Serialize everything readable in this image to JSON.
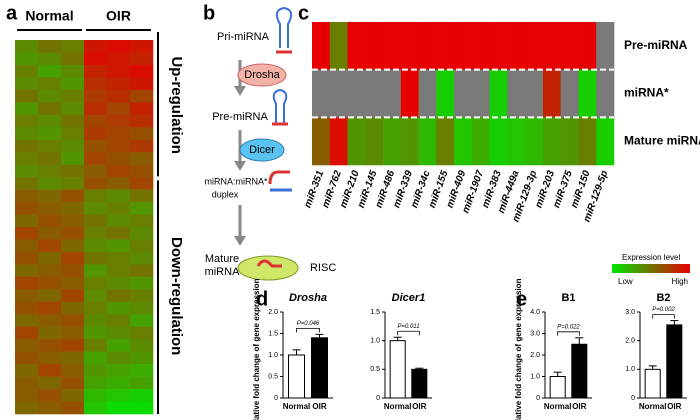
{
  "panel_labels": [
    "a",
    "b",
    "c",
    "d",
    "e"
  ],
  "diagram": {
    "steps": [
      "Pri-miRNA",
      "Pre-miRNA",
      "miRNA:miRNA*",
      "duplex",
      "Mature",
      "miRNA"
    ],
    "enzymes": [
      "Drosha",
      "Dicer",
      "RISC"
    ]
  },
  "chart_data": [
    {
      "type": "heatmap",
      "column_groups": [
        "Normal",
        "OIR"
      ],
      "row_groups": [
        "Up-regulation",
        "Down-regulation"
      ],
      "low_color": "#00e600",
      "high_color": "#e60000",
      "zlim": [
        0,
        1
      ],
      "values": [
        [
          0.4,
          0.5,
          0.45,
          0.9,
          0.95,
          0.9
        ],
        [
          0.35,
          0.4,
          0.5,
          0.95,
          0.9,
          0.85
        ],
        [
          0.45,
          0.3,
          0.4,
          0.85,
          0.9,
          0.95
        ],
        [
          0.4,
          0.45,
          0.35,
          0.8,
          0.85,
          0.9
        ],
        [
          0.5,
          0.4,
          0.45,
          0.75,
          0.8,
          0.7
        ],
        [
          0.35,
          0.5,
          0.4,
          0.8,
          0.7,
          0.85
        ],
        [
          0.45,
          0.4,
          0.5,
          0.7,
          0.75,
          0.8
        ],
        [
          0.4,
          0.35,
          0.45,
          0.75,
          0.7,
          0.65
        ],
        [
          0.5,
          0.45,
          0.4,
          0.65,
          0.7,
          0.75
        ],
        [
          0.45,
          0.5,
          0.35,
          0.7,
          0.65,
          0.6
        ],
        [
          0.4,
          0.45,
          0.5,
          0.6,
          0.7,
          0.65
        ],
        [
          0.5,
          0.4,
          0.45,
          0.65,
          0.6,
          0.7
        ],
        [
          0.6,
          0.55,
          0.65,
          0.45,
          0.4,
          0.5
        ],
        [
          0.65,
          0.6,
          0.55,
          0.4,
          0.45,
          0.35
        ],
        [
          0.55,
          0.65,
          0.6,
          0.5,
          0.4,
          0.45
        ],
        [
          0.7,
          0.6,
          0.65,
          0.45,
          0.5,
          0.4
        ],
        [
          0.6,
          0.7,
          0.55,
          0.4,
          0.35,
          0.45
        ],
        [
          0.65,
          0.55,
          0.7,
          0.5,
          0.45,
          0.4
        ],
        [
          0.55,
          0.6,
          0.65,
          0.35,
          0.45,
          0.5
        ],
        [
          0.7,
          0.65,
          0.6,
          0.45,
          0.4,
          0.35
        ],
        [
          0.6,
          0.55,
          0.7,
          0.4,
          0.5,
          0.45
        ],
        [
          0.65,
          0.7,
          0.55,
          0.45,
          0.35,
          0.4
        ],
        [
          0.55,
          0.6,
          0.65,
          0.4,
          0.45,
          0.3
        ],
        [
          0.7,
          0.55,
          0.6,
          0.35,
          0.4,
          0.45
        ],
        [
          0.6,
          0.65,
          0.7,
          0.45,
          0.3,
          0.4
        ],
        [
          0.65,
          0.6,
          0.55,
          0.3,
          0.4,
          0.35
        ],
        [
          0.55,
          0.7,
          0.6,
          0.35,
          0.3,
          0.25
        ],
        [
          0.6,
          0.55,
          0.65,
          0.3,
          0.25,
          0.3
        ],
        [
          0.6,
          0.65,
          0.55,
          0.2,
          0.15,
          0.1
        ],
        [
          0.55,
          0.6,
          0.65,
          0.15,
          0.05,
          0.05
        ]
      ]
    },
    {
      "type": "heatmap",
      "rows": [
        "Pre-miRNA",
        "miRNA*",
        "Mature miRNA"
      ],
      "columns": [
        "miR-351",
        "miR-762",
        "miR-210",
        "miR-145",
        "miR-486",
        "miR-339",
        "miR-34c",
        "miR-155",
        "miR-409",
        "miR-1907",
        "miR-383",
        "miR-449a",
        "miR-129-3p",
        "miR-203",
        "miR-375",
        "miR-150",
        "miR-129-5p"
      ],
      "low_color": "#00e600",
      "high_color": "#e60000",
      "missing_color": "#7a7a7a",
      "zlim": [
        0,
        1
      ],
      "legend_title": "Expression level",
      "legend_low": "Low",
      "legend_high": "High",
      "values": [
        [
          1,
          0.45,
          1,
          1,
          1,
          1,
          1,
          1,
          1,
          1,
          1,
          1,
          1,
          1,
          1,
          1,
          null
        ],
        [
          null,
          null,
          null,
          null,
          null,
          1,
          null,
          0.1,
          null,
          null,
          0.1,
          null,
          null,
          0.85,
          null,
          0.1,
          null
        ],
        [
          0.6,
          0.95,
          0.35,
          0.4,
          0.3,
          0.35,
          0.2,
          0.45,
          0.15,
          0.25,
          0.1,
          0.15,
          0.2,
          0.3,
          0.35,
          0.45,
          0.1
        ]
      ]
    },
    {
      "type": "bar",
      "title": "Drosha",
      "ylabel": "Relative fold change of gene expression",
      "categories": [
        "Normal",
        "OIR"
      ],
      "values": [
        1.0,
        1.4
      ],
      "errors": [
        0.12,
        0.08
      ],
      "colors": [
        "#ffffff",
        "#000000"
      ],
      "annotation": "P=0.046",
      "ylim": [
        0,
        2
      ],
      "yticks": [
        0,
        0.5,
        {
          "value": 1,
          "label": "1.0"
        },
        1.5,
        {
          "value": 2,
          "label": "2.0"
        }
      ]
    },
    {
      "type": "bar",
      "title": "Dicer1",
      "categories": [
        "Normal",
        "OIR"
      ],
      "values": [
        1.0,
        0.5
      ],
      "errors": [
        0.06,
        0.02
      ],
      "colors": [
        "#ffffff",
        "#000000"
      ],
      "annotation": "P=0.011",
      "ylim": [
        0,
        1.5
      ],
      "yticks": [
        0,
        0.5,
        {
          "value": 1,
          "label": "1.0"
        },
        1.5
      ]
    },
    {
      "type": "bar",
      "title": "B1",
      "ylabel": "Relative fold change of gene expression",
      "categories": [
        "Normal",
        "OIR"
      ],
      "values": [
        1.0,
        2.5
      ],
      "errors": [
        0.2,
        0.3
      ],
      "colors": [
        "#ffffff",
        "#000000"
      ],
      "annotation": "P=0.022",
      "ylim": [
        0,
        4
      ],
      "yticks": [
        0,
        {
          "value": 1,
          "label": "1.0"
        },
        {
          "value": 2,
          "label": "2.0"
        },
        {
          "value": 3,
          "label": "3.0"
        },
        {
          "value": 4,
          "label": "4.0"
        }
      ]
    },
    {
      "type": "bar",
      "title": "B2",
      "categories": [
        "Normal",
        "OIR"
      ],
      "values": [
        1.0,
        2.55
      ],
      "errors": [
        0.12,
        0.15
      ],
      "colors": [
        "#ffffff",
        "#000000"
      ],
      "annotation": "P=0.002",
      "ylim": [
        0,
        3
      ],
      "yticks": [
        0,
        {
          "value": 1,
          "label": "1.0"
        },
        {
          "value": 2,
          "label": "2.0"
        },
        {
          "value": 3,
          "label": "3.0"
        }
      ]
    }
  ]
}
